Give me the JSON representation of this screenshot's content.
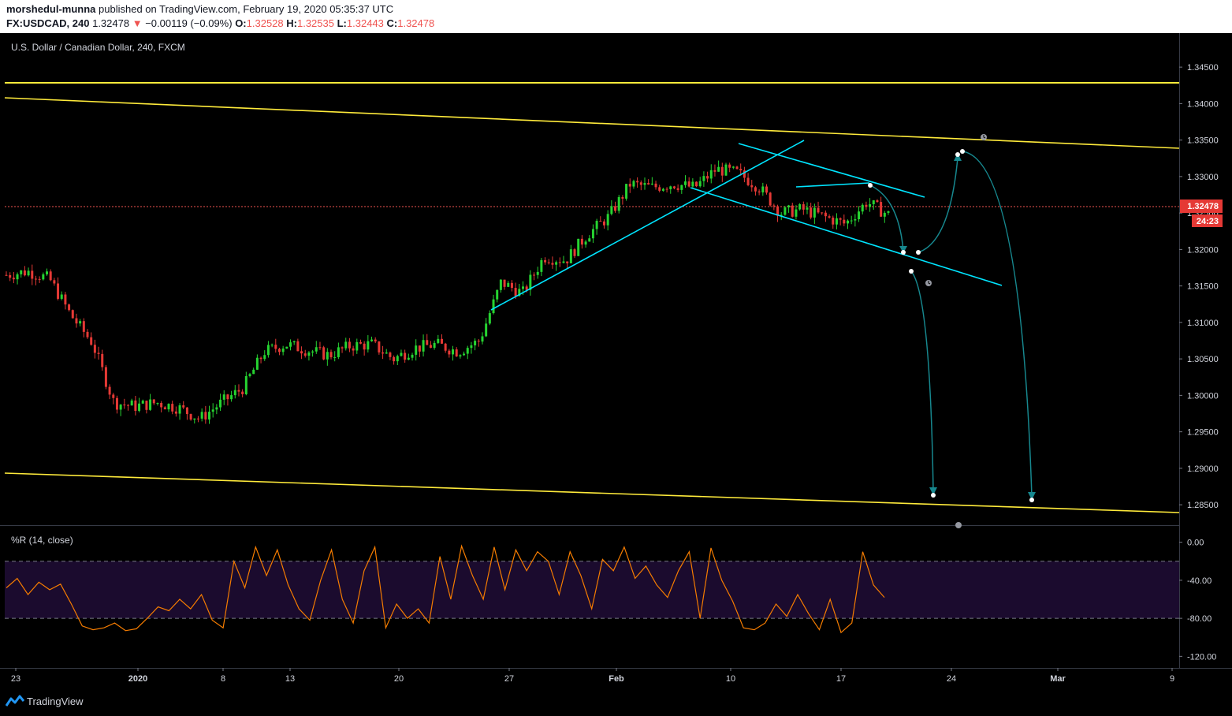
{
  "header": {
    "author": "morshedul-munna",
    "published_text": "published on TradingView.com, February 19, 2020 05:35:37 UTC",
    "symbol": "FX:USDCAD, 240",
    "last": "1.32478",
    "change_arrow": "▼",
    "change": "−0.00119 (−0.09%)",
    "o_label": "O:",
    "o_value": "1.32528",
    "h_label": "H:",
    "h_value": "1.32535",
    "l_label": "L:",
    "l_value": "1.32443",
    "c_label": "C:",
    "c_value": "1.32478"
  },
  "footer": {
    "brand": "TradingView",
    "brand_icon": "tradingview-logo-icon"
  },
  "chart_data": [
    {
      "type": "candlestick",
      "title": "U.S. Dollar / Canadian Dollar, 240, FXCM",
      "ylim": [
        1.2835,
        1.3475
      ],
      "price_ticks": [
        "1.34500",
        "1.34000",
        "1.33500",
        "1.33000",
        "1.32500",
        "1.32000",
        "1.31500",
        "1.31000",
        "1.30500",
        "1.30000",
        "1.29500",
        "1.29000",
        "1.28500"
      ],
      "last_price": "1.32478",
      "countdown": "24:23",
      "time_ticks": [
        "23",
        "2020",
        "8",
        "13",
        "17",
        "20",
        "27",
        "Feb",
        "10",
        "17",
        "24",
        "Mar",
        "9"
      ],
      "close_path": [
        [
          "Dec 23",
          1.3165
        ],
        [
          "Dec 25",
          1.317
        ],
        [
          "Dec 26",
          1.316
        ],
        [
          "Dec 27",
          1.311
        ],
        [
          "Dec 30",
          1.3072
        ],
        [
          "Dec 31",
          1.299
        ],
        [
          "Jan 1",
          1.2985
        ],
        [
          "Jan 2",
          1.299
        ],
        [
          "Jan 3",
          1.2983
        ],
        [
          "Jan 6",
          1.2968
        ],
        [
          "Jan 7",
          1.299
        ],
        [
          "Jan 8",
          1.301
        ],
        [
          "Jan 9",
          1.306
        ],
        [
          "Jan 10",
          1.307
        ],
        [
          "Jan 13",
          1.3062
        ],
        [
          "Jan 14",
          1.3055
        ],
        [
          "Jan 15",
          1.3068
        ],
        [
          "Jan 16",
          1.307
        ],
        [
          "Jan 17",
          1.305
        ],
        [
          "Jan 20",
          1.3065
        ],
        [
          "Jan 21",
          1.307
        ],
        [
          "Jan 22",
          1.306
        ],
        [
          "Jan 23",
          1.3075
        ],
        [
          "Jan 24",
          1.3155
        ],
        [
          "Jan 27",
          1.314
        ],
        [
          "Jan 28",
          1.319
        ],
        [
          "Jan 29",
          1.3185
        ],
        [
          "Jan 30",
          1.322
        ],
        [
          "Jan 31",
          1.3245
        ],
        [
          "Feb 3",
          1.329
        ],
        [
          "Feb 4",
          1.3285
        ],
        [
          "Feb 5",
          1.329
        ],
        [
          "Feb 6",
          1.3285
        ],
        [
          "Feb 7",
          1.331
        ],
        [
          "Feb 10",
          1.3305
        ],
        [
          "Feb 11",
          1.3285
        ],
        [
          "Feb 12",
          1.325
        ],
        [
          "Feb 13",
          1.3255
        ],
        [
          "Feb 14",
          1.3245
        ],
        [
          "Feb 17",
          1.3235
        ],
        [
          "Feb 18",
          1.3265
        ],
        [
          "Feb 19",
          1.32478
        ]
      ]
    },
    {
      "type": "line",
      "title": "%R (14, close)",
      "ylim": [
        -128,
        8
      ],
      "ticks": [
        "0.00",
        "-40.00",
        "-80.00",
        "-120.00"
      ],
      "levels": [
        -20,
        -80
      ],
      "values": [
        -48,
        -38,
        -55,
        -42,
        -50,
        -44,
        -65,
        -88,
        -92,
        -90,
        -85,
        -93,
        -91,
        -80,
        -68,
        -72,
        -60,
        -70,
        -55,
        -82,
        -90,
        -20,
        -48,
        -5,
        -35,
        -8,
        -45,
        -70,
        -82,
        -40,
        -8,
        -60,
        -85,
        -30,
        -5,
        -90,
        -65,
        -80,
        -70,
        -85,
        -15,
        -60,
        -4,
        -35,
        -60,
        -5,
        -50,
        -8,
        -30,
        -10,
        -20,
        -55,
        -10,
        -35,
        -70,
        -18,
        -30,
        -5,
        -38,
        -25,
        -45,
        -58,
        -30,
        -10,
        -80,
        -6,
        -40,
        -62,
        -90,
        -92,
        -85,
        -65,
        -78,
        -55,
        -75,
        -92,
        -60,
        -95,
        -85,
        -10,
        -45,
        -58
      ]
    }
  ]
}
